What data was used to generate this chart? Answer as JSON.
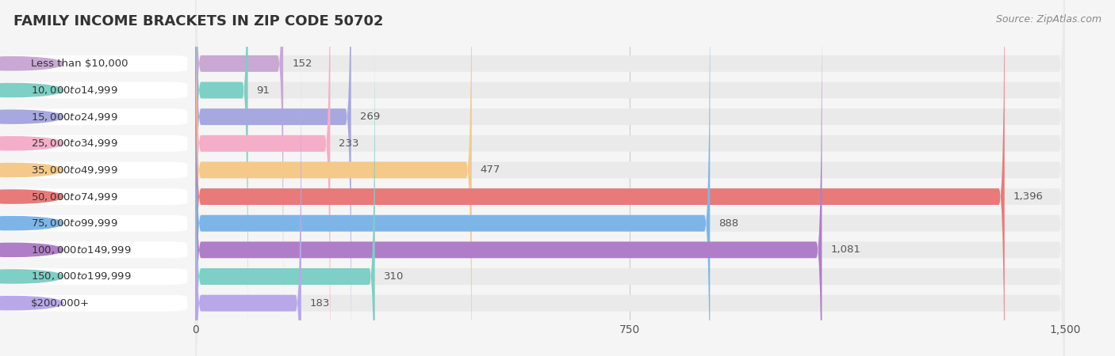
{
  "title": "FAMILY INCOME BRACKETS IN ZIP CODE 50702",
  "source": "Source: ZipAtlas.com",
  "categories": [
    "Less than $10,000",
    "$10,000 to $14,999",
    "$15,000 to $24,999",
    "$25,000 to $34,999",
    "$35,000 to $49,999",
    "$50,000 to $74,999",
    "$75,000 to $99,999",
    "$100,000 to $149,999",
    "$150,000 to $199,999",
    "$200,000+"
  ],
  "values": [
    152,
    91,
    269,
    233,
    477,
    1396,
    888,
    1081,
    310,
    183
  ],
  "bar_colors": [
    "#c9a8d4",
    "#7ecfc5",
    "#a8a8e0",
    "#f5aec8",
    "#f5c98a",
    "#e87a7a",
    "#7eb5e8",
    "#b07ec8",
    "#7ecfc5",
    "#b8a8e8"
  ],
  "xlim_max": 1500,
  "xticks": [
    0,
    750,
    1500
  ],
  "background_color": "#f5f5f5",
  "bar_row_bg": "#eaeaea",
  "label_bg": "#ffffff",
  "title_fontsize": 13,
  "label_fontsize": 9.5,
  "value_fontsize": 9.5,
  "tick_fontsize": 10
}
